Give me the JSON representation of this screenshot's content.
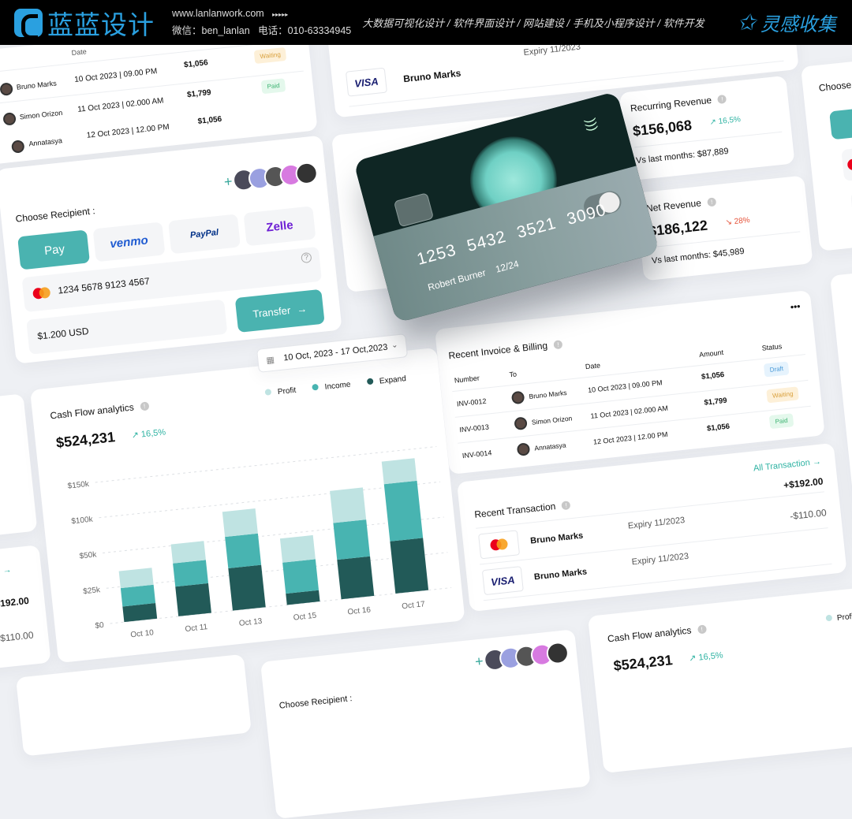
{
  "header": {
    "brand": "蓝蓝设计",
    "site": "www.lanlanwork.com",
    "arrows": "▸▸▸▸▸",
    "wechat": "微信：ben_lanlan",
    "phone": "电话：010-63334945",
    "nav": "大数据可视化设计 / 软件界面设计 / 网站建设 / 手机及小程序设计 / 软件开发",
    "right": "灵感收集"
  },
  "colors": {
    "accent": "#4ab3b0",
    "profit": "#bfe3e2",
    "income": "#48b4b1",
    "expand": "#225a58",
    "up": "#2fb3a3",
    "down": "#e5533a"
  },
  "invoice": {
    "title": "Recent Invoice & Billing",
    "headers": [
      "Number",
      "To",
      "Date",
      "Amount",
      "Status"
    ],
    "rows": [
      {
        "number": "INV-0012",
        "to": "Bruno Marks",
        "date": "10 Oct 2023 | 09.00 PM",
        "amount": "$1,056",
        "status": "Draft"
      },
      {
        "number": "INV-0013",
        "to": "Simon Orizon",
        "date": "11 Oct 2023 | 02.000 AM",
        "amount": "$1,799",
        "status": "Waiting"
      },
      {
        "number": "INV-0014",
        "to": "Annatasya",
        "date": "12 Oct 2023 | 12.00 PM",
        "amount": "$1,056",
        "status": "Paid"
      }
    ]
  },
  "transaction": {
    "title": "Recent Transaction",
    "all": "All Transaction",
    "rows": [
      {
        "card": "mastercard",
        "name": "Bruno Marks",
        "expiry": "Expiry 11/2023",
        "amount": "+$192.00"
      },
      {
        "card": "VISA",
        "name": "Bruno Marks",
        "expiry": "Expiry 11/2023",
        "amount": "-$110.00"
      }
    ]
  },
  "recipient": {
    "title": "Choose Recipient :",
    "methods": [
      "Pay",
      "venmo",
      "PayPal",
      "Zelle"
    ],
    "card_number": "1234 5678 9123 4567",
    "amount": "$1.200 USD",
    "transfer": "Transfer",
    "add": "+"
  },
  "credit_card": {
    "number": [
      "1253",
      "5432",
      "3521",
      "3090"
    ],
    "holder": "Robert Burner",
    "expiry": "12/24"
  },
  "recurring": {
    "title": "Recurring Revenue",
    "value": "$156,068",
    "change": "16,5%",
    "vs": "Vs last months: $87,889"
  },
  "net": {
    "title": "Net Revenue",
    "value": "$186,122",
    "change": "28%",
    "vs": "Vs last months: $45,989"
  },
  "cashflow": {
    "title": "Cash Flow analytics",
    "value": "$524,231",
    "change": "16,5%",
    "date_range": "10 Oct, 2023 - 17 Oct,2023"
  },
  "right_partial": {
    "title": "Choose",
    "amount": "$"
  },
  "chart_data": {
    "type": "bar",
    "stacked": true,
    "categories": [
      "Oct 10",
      "Oct 11",
      "Oct 13",
      "Oct 15",
      "Oct 16",
      "Oct 17"
    ],
    "series": [
      {
        "name": "Expand",
        "values": [
          11,
          21,
          30,
          8,
          28,
          37
        ]
      },
      {
        "name": "Income",
        "values": [
          13,
          16.5,
          24.5,
          22,
          30,
          68
        ]
      },
      {
        "name": "Profit",
        "values": [
          12,
          14.5,
          35.5,
          17,
          45.5,
          32
        ]
      }
    ],
    "yticks": [
      "$0",
      "$25k",
      "$50k",
      "$100k",
      "$150k"
    ],
    "ytick_values": [
      0,
      25,
      50,
      100,
      150
    ],
    "unit": "thousand USD",
    "grid": true,
    "legend": "top-right"
  }
}
